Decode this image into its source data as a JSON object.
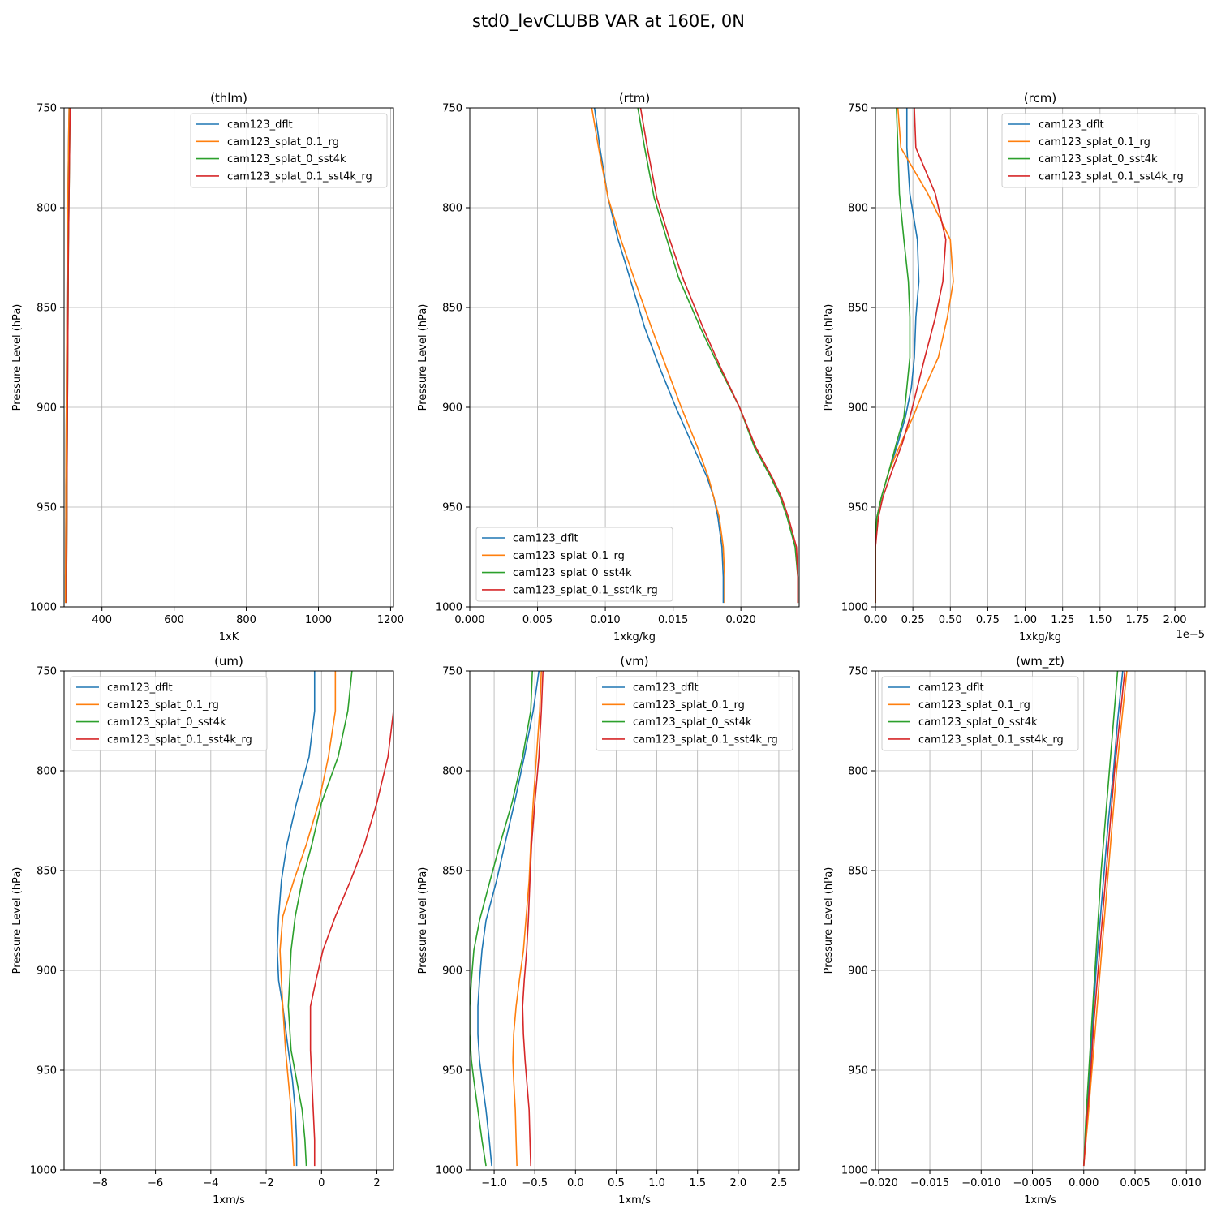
{
  "figure": {
    "title": "std0_levCLUBB VAR at 160E, 0N"
  },
  "colors": {
    "cam123_dflt": "#1f77b4",
    "cam123_splat_0.1_rg": "#ff7f0e",
    "cam123_splat_0_sst4k": "#2ca02c",
    "cam123_splat_0.1_sst4k_rg": "#d62728",
    "grid": "#b0b0b0"
  },
  "chart_data": [
    {
      "type": "line",
      "title": "(thlm)",
      "xlabel": "1xK",
      "ylabel": "Pressure Level (hPa)",
      "xlim": [
        295,
        1208
      ],
      "ylim": [
        1000,
        750
      ],
      "xticks": [
        400,
        600,
        800,
        1000,
        1200
      ],
      "xtick_labels": [
        "400",
        "600",
        "800",
        "1000",
        "1200"
      ],
      "yticks": [
        750,
        800,
        850,
        900,
        950,
        1000
      ],
      "ytick_labels": [
        "750",
        "800",
        "850",
        "900",
        "950",
        "1000"
      ],
      "offset_label": "",
      "grid": true,
      "legend": "top-right",
      "y": [
        998,
        985,
        970,
        955,
        940,
        925,
        910,
        895,
        880,
        865,
        850,
        835,
        820,
        805,
        790,
        775,
        760,
        750
      ],
      "series": [
        {
          "name": "cam123_dflt",
          "values": [
            299,
            299,
            299.5,
            300,
            300,
            300.5,
            301,
            301.5,
            302,
            302.5,
            303,
            303.5,
            304,
            305,
            306,
            307,
            308,
            309
          ]
        },
        {
          "name": "cam123_splat_0.1_rg",
          "values": [
            299,
            299,
            299.5,
            300,
            300,
            300.5,
            301,
            301.5,
            302,
            302.5,
            303,
            303.5,
            304,
            305,
            306,
            307,
            308,
            309
          ]
        },
        {
          "name": "cam123_splat_0_sst4k",
          "values": [
            302,
            302,
            302.5,
            303,
            303,
            303.5,
            304,
            304.5,
            305,
            305.5,
            306,
            306.5,
            307,
            308,
            309,
            310,
            311,
            312
          ]
        },
        {
          "name": "cam123_splat_0.1_sst4k_rg",
          "values": [
            302,
            302,
            302.5,
            303,
            303,
            303.5,
            304,
            304.5,
            305,
            305.5,
            306,
            306.5,
            307,
            308,
            309,
            310,
            311,
            312
          ]
        }
      ]
    },
    {
      "type": "line",
      "title": "(rtm)",
      "xlabel": "1xkg/kg",
      "ylabel": "Pressure Level (hPa)",
      "xlim": [
        0,
        0.0243
      ],
      "ylim": [
        1000,
        750
      ],
      "xticks": [
        0,
        0.005,
        0.01,
        0.015,
        0.02
      ],
      "xtick_labels": [
        "0.000",
        "0.005",
        "0.010",
        "0.015",
        "0.020"
      ],
      "yticks": [
        750,
        800,
        850,
        900,
        950,
        1000
      ],
      "ytick_labels": [
        "750",
        "800",
        "850",
        "900",
        "950",
        "1000"
      ],
      "offset_label": "",
      "grid": true,
      "legend": "bottom-left",
      "y": [
        998,
        985,
        970,
        955,
        945,
        935,
        920,
        900,
        880,
        860,
        835,
        815,
        795,
        770,
        750
      ],
      "series": [
        {
          "name": "cam123_dflt",
          "values": [
            0.0187,
            0.0187,
            0.0186,
            0.0183,
            0.018,
            0.0175,
            0.0165,
            0.0152,
            0.014,
            0.0129,
            0.0118,
            0.0109,
            0.0102,
            0.0096,
            0.0092
          ]
        },
        {
          "name": "cam123_splat_0.1_rg",
          "values": [
            0.0188,
            0.0188,
            0.0187,
            0.0184,
            0.018,
            0.0176,
            0.0168,
            0.0156,
            0.0145,
            0.0134,
            0.0121,
            0.0111,
            0.0102,
            0.0095,
            0.009
          ]
        },
        {
          "name": "cam123_splat_0_sst4k",
          "values": [
            0.0242,
            0.0242,
            0.024,
            0.0234,
            0.0229,
            0.0222,
            0.021,
            0.0199,
            0.0184,
            0.017,
            0.0154,
            0.0145,
            0.0136,
            0.0129,
            0.0124
          ]
        },
        {
          "name": "cam123_splat_0.1_sst4k_rg",
          "values": [
            0.0242,
            0.0242,
            0.0241,
            0.0235,
            0.023,
            0.0223,
            0.0211,
            0.0199,
            0.0185,
            0.0172,
            0.0157,
            0.0147,
            0.0138,
            0.0131,
            0.0126
          ]
        }
      ]
    },
    {
      "type": "line",
      "title": "(rcm)",
      "xlabel": "1xkg/kg",
      "ylabel": "Pressure Level (hPa)",
      "xlim": [
        0,
        2.2e-05
      ],
      "ylim": [
        1000,
        750
      ],
      "xticks": [
        0,
        2.5e-06,
        5e-06,
        7.5e-06,
        1e-05,
        1.25e-05,
        1.5e-05,
        1.75e-05,
        2e-05
      ],
      "xtick_labels": [
        "0.00",
        "0.25",
        "0.50",
        "0.75",
        "1.00",
        "1.25",
        "1.50",
        "1.75",
        "2.00"
      ],
      "yticks": [
        750,
        800,
        850,
        900,
        950,
        1000
      ],
      "ytick_labels": [
        "750",
        "800",
        "850",
        "900",
        "950",
        "1000"
      ],
      "offset_label": "1e−5",
      "grid": true,
      "legend": "top-right",
      "y": [
        998,
        985,
        970,
        955,
        945,
        932,
        918,
        905,
        890,
        875,
        855,
        837,
        816,
        793,
        770,
        750
      ],
      "series": [
        {
          "name": "cam123_dflt",
          "values": [
            0,
            0,
            0,
            1e-07,
            4e-07,
            9e-07,
            1.5e-06,
            2e-06,
            2.4e-06,
            2.6e-06,
            2.7e-06,
            2.9e-06,
            2.8e-06,
            2.3e-06,
            2.1e-06,
            2.1e-06
          ]
        },
        {
          "name": "cam123_splat_0.1_rg",
          "values": [
            0,
            0,
            0,
            1e-07,
            4e-07,
            9e-07,
            1.7e-06,
            2.5e-06,
            3.3e-06,
            4.2e-06,
            4.8e-06,
            5.2e-06,
            5e-06,
            3.5e-06,
            1.7e-06,
            1.5e-06
          ]
        },
        {
          "name": "cam123_splat_0_sst4k",
          "values": [
            0,
            0,
            0,
            1e-07,
            4e-07,
            9e-07,
            1.4e-06,
            1.9e-06,
            2.1e-06,
            2.3e-06,
            2.3e-06,
            2.2e-06,
            1.9e-06,
            1.6e-06,
            1.5e-06,
            1.4e-06
          ]
        },
        {
          "name": "cam123_splat_0.1_sst4k_rg",
          "values": [
            0,
            0,
            0,
            2e-07,
            5e-07,
            1.1e-06,
            1.8e-06,
            2.3e-06,
            2.8e-06,
            3.3e-06,
            4e-06,
            4.5e-06,
            4.7e-06,
            4e-06,
            2.7e-06,
            2.6e-06
          ]
        }
      ]
    },
    {
      "type": "line",
      "title": "(um)",
      "xlabel": "1xm/s",
      "ylabel": "Pressure Level (hPa)",
      "xlim": [
        -9.3,
        2.6
      ],
      "ylim": [
        1000,
        750
      ],
      "xticks": [
        -8,
        -6,
        -4,
        -2,
        0,
        2
      ],
      "xtick_labels": [
        "−8",
        "−6",
        "−4",
        "−2",
        "0",
        "2"
      ],
      "yticks": [
        750,
        800,
        850,
        900,
        950,
        1000
      ],
      "ytick_labels": [
        "750",
        "800",
        "850",
        "900",
        "950",
        "1000"
      ],
      "offset_label": "",
      "grid": true,
      "legend": "top-left",
      "y": [
        998,
        985,
        970,
        955,
        940,
        918,
        905,
        890,
        873,
        855,
        837,
        816,
        793,
        770,
        750
      ],
      "series": [
        {
          "name": "cam123_dflt",
          "values": [
            -0.9,
            -0.9,
            -0.95,
            -1.05,
            -1.2,
            -1.4,
            -1.55,
            -1.6,
            -1.55,
            -1.45,
            -1.25,
            -0.9,
            -0.45,
            -0.25,
            -0.25
          ]
        },
        {
          "name": "cam123_splat_0.1_rg",
          "values": [
            -1.0,
            -1.05,
            -1.1,
            -1.2,
            -1.3,
            -1.4,
            -1.45,
            -1.5,
            -1.4,
            -1.0,
            -0.55,
            -0.1,
            0.25,
            0.5,
            0.5
          ]
        },
        {
          "name": "cam123_splat_0_sst4k",
          "values": [
            -0.55,
            -0.6,
            -0.7,
            -0.9,
            -1.1,
            -1.2,
            -1.15,
            -1.1,
            -0.95,
            -0.7,
            -0.35,
            0.0,
            0.6,
            0.95,
            1.1
          ]
        },
        {
          "name": "cam123_splat_0.1_sst4k_rg",
          "values": [
            -0.25,
            -0.25,
            -0.3,
            -0.35,
            -0.4,
            -0.4,
            -0.2,
            0.05,
            0.5,
            1.05,
            1.55,
            2.0,
            2.4,
            2.6,
            2.6
          ]
        }
      ]
    },
    {
      "type": "line",
      "title": "(vm)",
      "xlabel": "1xm/s",
      "ylabel": "Pressure Level (hPa)",
      "xlim": [
        -1.3,
        2.75
      ],
      "ylim": [
        1000,
        750
      ],
      "xticks": [
        -1,
        -0.5,
        0,
        0.5,
        1,
        1.5,
        2,
        2.5
      ],
      "xtick_labels": [
        "−1.0",
        "−0.5",
        "0.0",
        "0.5",
        "1.0",
        "1.5",
        "2.0",
        "2.5"
      ],
      "yticks": [
        750,
        800,
        850,
        900,
        950,
        1000
      ],
      "ytick_labels": [
        "750",
        "800",
        "850",
        "900",
        "950",
        "1000"
      ],
      "offset_label": "",
      "grid": true,
      "legend": "top-right",
      "y": [
        998,
        985,
        970,
        955,
        945,
        932,
        918,
        905,
        890,
        875,
        855,
        837,
        816,
        793,
        770,
        750
      ],
      "series": [
        {
          "name": "cam123_dflt",
          "values": [
            -1.03,
            -1.06,
            -1.1,
            -1.15,
            -1.18,
            -1.2,
            -1.2,
            -1.18,
            -1.15,
            -1.1,
            -0.97,
            -0.87,
            -0.75,
            -0.63,
            -0.52,
            -0.45
          ]
        },
        {
          "name": "cam123_splat_0.1_rg",
          "values": [
            -0.72,
            -0.73,
            -0.74,
            -0.76,
            -0.77,
            -0.76,
            -0.73,
            -0.69,
            -0.64,
            -0.61,
            -0.57,
            -0.55,
            -0.52,
            -0.48,
            -0.44,
            -0.42
          ]
        },
        {
          "name": "cam123_splat_0_sst4k",
          "values": [
            -1.1,
            -1.15,
            -1.2,
            -1.25,
            -1.28,
            -1.3,
            -1.3,
            -1.28,
            -1.25,
            -1.18,
            -1.05,
            -0.93,
            -0.78,
            -0.65,
            -0.55,
            -0.53
          ]
        },
        {
          "name": "cam123_splat_0.1_sst4k_rg",
          "values": [
            -0.55,
            -0.56,
            -0.57,
            -0.6,
            -0.62,
            -0.64,
            -0.65,
            -0.63,
            -0.6,
            -0.58,
            -0.56,
            -0.54,
            -0.5,
            -0.45,
            -0.42,
            -0.4
          ]
        }
      ]
    },
    {
      "type": "line",
      "title": "(wm_zt)",
      "xlabel": "1xm/s",
      "ylabel": "Pressure Level (hPa)",
      "xlim": [
        -0.0203,
        0.0118
      ],
      "ylim": [
        1000,
        750
      ],
      "xticks": [
        -0.02,
        -0.015,
        -0.01,
        -0.005,
        0,
        0.005,
        0.01
      ],
      "xtick_labels": [
        "−0.020",
        "−0.015",
        "−0.010",
        "−0.005",
        "0.000",
        "0.005",
        "0.010"
      ],
      "yticks": [
        750,
        800,
        850,
        900,
        950,
        1000
      ],
      "ytick_labels": [
        "750",
        "800",
        "850",
        "900",
        "950",
        "1000"
      ],
      "offset_label": "",
      "grid": true,
      "legend": "top-left",
      "y": [
        998,
        975,
        950,
        925,
        900,
        875,
        850,
        825,
        800,
        775,
        750
      ],
      "series": [
        {
          "name": "cam123_dflt",
          "values": [
            0,
            0.0003,
            0.0006,
            0.0009,
            0.0012,
            0.0016,
            0.002,
            0.0024,
            0.0029,
            0.0033,
            0.0038
          ]
        },
        {
          "name": "cam123_splat_0.1_rg",
          "values": [
            0,
            0.0004,
            0.0008,
            0.0012,
            0.0016,
            0.002,
            0.0024,
            0.0028,
            0.0032,
            0.0037,
            0.0042
          ]
        },
        {
          "name": "cam123_splat_0_sst4k",
          "values": [
            0,
            0.0002,
            0.0005,
            0.0008,
            0.0011,
            0.0014,
            0.0017,
            0.0021,
            0.0025,
            0.0029,
            0.0033
          ]
        },
        {
          "name": "cam123_splat_0.1_sst4k_rg",
          "values": [
            0,
            0.0003,
            0.0007,
            0.001,
            0.0014,
            0.0018,
            0.0022,
            0.0026,
            0.003,
            0.0035,
            0.004
          ]
        }
      ]
    }
  ]
}
